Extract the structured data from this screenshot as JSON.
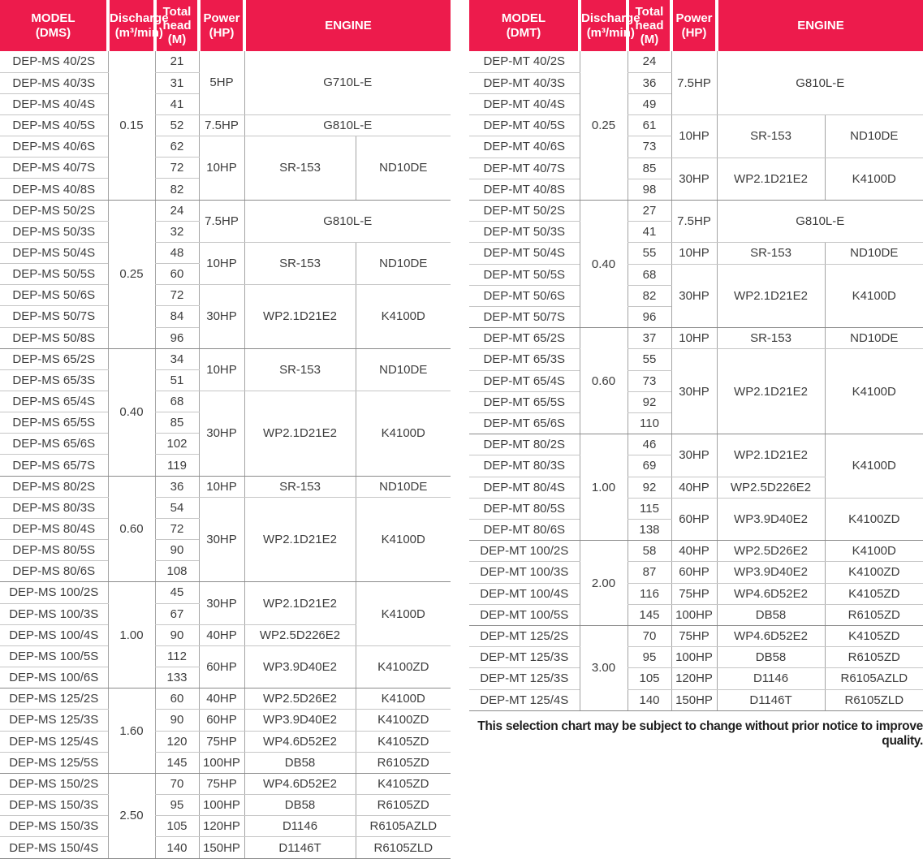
{
  "colors": {
    "header_bg": "#ED1B4C",
    "header_text": "#ffffff",
    "body_text": "#3d3d3d"
  },
  "note": "This selection chart may be subject to change without prior notice to improve quality.",
  "tables": [
    {
      "id": "dms",
      "header": {
        "model": "MODEL\n(DMS)",
        "discharge": "Discharge\n(m³/min)",
        "head": "Total\nhead\n(M)",
        "power": "Power\n(HP)",
        "engine": "ENGINE"
      },
      "columns": {
        "model": [
          "DEP-MS 40/2S",
          "DEP-MS 40/3S",
          "DEP-MS 40/4S",
          "DEP-MS 40/5S",
          "DEP-MS 40/6S",
          "DEP-MS 40/7S",
          "DEP-MS 40/8S",
          "DEP-MS 50/2S",
          "DEP-MS 50/3S",
          "DEP-MS 50/4S",
          "DEP-MS 50/5S",
          "DEP-MS 50/6S",
          "DEP-MS 50/7S",
          "DEP-MS 50/8S",
          "DEP-MS 65/2S",
          "DEP-MS 65/3S",
          "DEP-MS 65/4S",
          "DEP-MS 65/5S",
          "DEP-MS 65/6S",
          "DEP-MS 65/7S",
          "DEP-MS 80/2S",
          "DEP-MS 80/3S",
          "DEP-MS 80/4S",
          "DEP-MS 80/5S",
          "DEP-MS 80/6S",
          "DEP-MS 100/2S",
          "DEP-MS 100/3S",
          "DEP-MS 100/4S",
          "DEP-MS 100/5S",
          "DEP-MS 100/6S",
          "DEP-MS 125/2S",
          "DEP-MS 125/3S",
          "DEP-MS 125/4S",
          "DEP-MS 125/5S",
          "DEP-MS 150/2S",
          "DEP-MS 150/3S",
          "DEP-MS 150/3S",
          "DEP-MS 150/4S"
        ],
        "head": [
          "21",
          "31",
          "41",
          "52",
          "62",
          "72",
          "82",
          "24",
          "32",
          "48",
          "60",
          "72",
          "84",
          "96",
          "34",
          "51",
          "68",
          "85",
          "102",
          "119",
          "36",
          "54",
          "72",
          "90",
          "108",
          "45",
          "67",
          "90",
          "112",
          "133",
          "60",
          "90",
          "120",
          "145",
          "70",
          "95",
          "105",
          "140"
        ],
        "discharge": [
          {
            "t": "0.15",
            "r": 7
          },
          {
            "t": "0.25",
            "r": 7
          },
          {
            "t": "0.40",
            "r": 6
          },
          {
            "t": "0.60",
            "r": 5
          },
          {
            "t": "1.00",
            "r": 5
          },
          {
            "t": "1.60",
            "r": 4
          },
          {
            "t": "2.50",
            "r": 4
          }
        ],
        "power": [
          {
            "t": "5HP",
            "r": 3
          },
          {
            "t": "7.5HP",
            "r": 1
          },
          {
            "t": "10HP",
            "r": 3
          },
          {
            "t": "7.5HP",
            "r": 2
          },
          {
            "t": "10HP",
            "r": 2
          },
          {
            "t": "30HP",
            "r": 3
          },
          {
            "t": "10HP",
            "r": 2
          },
          {
            "t": "30HP",
            "r": 4
          },
          {
            "t": "10HP",
            "r": 1
          },
          {
            "t": "30HP",
            "r": 4
          },
          {
            "t": "30HP",
            "r": 2
          },
          {
            "t": "40HP",
            "r": 1
          },
          {
            "t": "60HP",
            "r": 2
          },
          {
            "t": "40HP",
            "r": 1
          },
          {
            "t": "60HP",
            "r": 1
          },
          {
            "t": "75HP",
            "r": 1
          },
          {
            "t": "100HP",
            "r": 1
          },
          {
            "t": "75HP",
            "r": 1
          },
          {
            "t": "100HP",
            "r": 1
          },
          {
            "t": "120HP",
            "r": 1
          },
          {
            "t": "150HP",
            "r": 1
          }
        ],
        "engine1": [
          {
            "t": "G710L-E",
            "r": 3,
            "w": 2
          },
          {
            "t": "G810L-E",
            "r": 1,
            "w": 2
          },
          {
            "t": "SR-153",
            "r": 3
          },
          {
            "t": "G810L-E",
            "r": 2,
            "w": 2
          },
          {
            "t": "SR-153",
            "r": 2
          },
          {
            "t": "WP2.1D21E2",
            "r": 3
          },
          {
            "t": "SR-153",
            "r": 2
          },
          {
            "t": "WP2.1D21E2",
            "r": 4
          },
          {
            "t": "SR-153",
            "r": 1
          },
          {
            "t": "WP2.1D21E2",
            "r": 4
          },
          {
            "t": "WP2.1D21E2",
            "r": 2
          },
          {
            "t": "WP2.5D226E2",
            "r": 1
          },
          {
            "t": "WP3.9D40E2",
            "r": 2
          },
          {
            "t": "WP2.5D26E2",
            "r": 1
          },
          {
            "t": "WP3.9D40E2",
            "r": 1
          },
          {
            "t": "WP4.6D52E2",
            "r": 1
          },
          {
            "t": "DB58",
            "r": 1
          },
          {
            "t": "WP4.6D52E2",
            "r": 1
          },
          {
            "t": "DB58",
            "r": 1
          },
          {
            "t": "D1146",
            "r": 1
          },
          {
            "t": "D1146T",
            "r": 1
          }
        ],
        "engine2": [
          {
            "t": "ND10DE",
            "r": 3
          },
          {
            "t": "ND10DE",
            "r": 2
          },
          {
            "t": "K4100D",
            "r": 3
          },
          {
            "t": "ND10DE",
            "r": 2
          },
          {
            "t": "K4100D",
            "r": 4
          },
          {
            "t": "ND10DE",
            "r": 1
          },
          {
            "t": "K4100D",
            "r": 4
          },
          {
            "t": "K4100D",
            "r": 3
          },
          {
            "t": "K4100ZD",
            "r": 2
          },
          {
            "t": "K4100D",
            "r": 1
          },
          {
            "t": "K4100ZD",
            "r": 1
          },
          {
            "t": "K4105ZD",
            "r": 1
          },
          {
            "t": "R6105ZD",
            "r": 1
          },
          {
            "t": "K4105ZD",
            "r": 1
          },
          {
            "t": "R6105ZD",
            "r": 1
          },
          {
            "t": "R6105AZLD",
            "r": 1
          },
          {
            "t": "R6105ZLD",
            "r": 1
          }
        ]
      }
    },
    {
      "id": "dmt",
      "header": {
        "model": "MODEL\n(DMT)",
        "discharge": "Discharge\n(m³/min)",
        "head": "Total\nhead\n(M)",
        "power": "Power\n(HP)",
        "engine": "ENGINE"
      },
      "columns": {
        "model": [
          "DEP-MT 40/2S",
          "DEP-MT 40/3S",
          "DEP-MT 40/4S",
          "DEP-MT 40/5S",
          "DEP-MT 40/6S",
          "DEP-MT 40/7S",
          "DEP-MT 40/8S",
          "DEP-MT 50/2S",
          "DEP-MT 50/3S",
          "DEP-MT 50/4S",
          "DEP-MT 50/5S",
          "DEP-MT 50/6S",
          "DEP-MT 50/7S",
          "DEP-MT 65/2S",
          "DEP-MT 65/3S",
          "DEP-MT 65/4S",
          "DEP-MT 65/5S",
          "DEP-MT 65/6S",
          "DEP-MT 80/2S",
          "DEP-MT 80/3S",
          "DEP-MT 80/4S",
          "DEP-MT 80/5S",
          "DEP-MT 80/6S",
          "DEP-MT 100/2S",
          "DEP-MT 100/3S",
          "DEP-MT 100/4S",
          "DEP-MT 100/5S",
          "DEP-MT 125/2S",
          "DEP-MT 125/3S",
          "DEP-MT 125/3S",
          "DEP-MT 125/4S"
        ],
        "head": [
          "24",
          "36",
          "49",
          "61",
          "73",
          "85",
          "98",
          "27",
          "41",
          "55",
          "68",
          "82",
          "96",
          "37",
          "55",
          "73",
          "92",
          "110",
          "46",
          "69",
          "92",
          "115",
          "138",
          "58",
          "87",
          "116",
          "145",
          "70",
          "95",
          "105",
          "140"
        ],
        "discharge": [
          {
            "t": "0.25",
            "r": 7
          },
          {
            "t": "0.40",
            "r": 6
          },
          {
            "t": "0.60",
            "r": 5
          },
          {
            "t": "1.00",
            "r": 5
          },
          {
            "t": "2.00",
            "r": 4
          },
          {
            "t": "3.00",
            "r": 4
          }
        ],
        "power": [
          {
            "t": "7.5HP",
            "r": 3
          },
          {
            "t": "10HP",
            "r": 2
          },
          {
            "t": "30HP",
            "r": 2
          },
          {
            "t": "7.5HP",
            "r": 2
          },
          {
            "t": "10HP",
            "r": 1
          },
          {
            "t": "30HP",
            "r": 3
          },
          {
            "t": "10HP",
            "r": 1
          },
          {
            "t": "30HP",
            "r": 4
          },
          {
            "t": "30HP",
            "r": 2
          },
          {
            "t": "40HP",
            "r": 1
          },
          {
            "t": "60HP",
            "r": 2
          },
          {
            "t": "40HP",
            "r": 1
          },
          {
            "t": "60HP",
            "r": 1
          },
          {
            "t": "75HP",
            "r": 1
          },
          {
            "t": "100HP",
            "r": 1
          },
          {
            "t": "75HP",
            "r": 1
          },
          {
            "t": "100HP",
            "r": 1
          },
          {
            "t": "120HP",
            "r": 1
          },
          {
            "t": "150HP",
            "r": 1
          }
        ],
        "engine1": [
          {
            "t": "G810L-E",
            "r": 3,
            "w": 2
          },
          {
            "t": "SR-153",
            "r": 2
          },
          {
            "t": "WP2.1D21E2",
            "r": 2
          },
          {
            "t": "G810L-E",
            "r": 2,
            "w": 2
          },
          {
            "t": "SR-153",
            "r": 1
          },
          {
            "t": "WP2.1D21E2",
            "r": 3
          },
          {
            "t": "SR-153",
            "r": 1
          },
          {
            "t": "WP2.1D21E2",
            "r": 4
          },
          {
            "t": "WP2.1D21E2",
            "r": 2
          },
          {
            "t": "WP2.5D226E2",
            "r": 1
          },
          {
            "t": "WP3.9D40E2",
            "r": 2
          },
          {
            "t": "WP2.5D26E2",
            "r": 1
          },
          {
            "t": "WP3.9D40E2",
            "r": 1
          },
          {
            "t": "WP4.6D52E2",
            "r": 1
          },
          {
            "t": "DB58",
            "r": 1
          },
          {
            "t": "WP4.6D52E2",
            "r": 1
          },
          {
            "t": "DB58",
            "r": 1
          },
          {
            "t": "D1146",
            "r": 1
          },
          {
            "t": "D1146T",
            "r": 1
          }
        ],
        "engine2": [
          {
            "t": "ND10DE",
            "r": 2
          },
          {
            "t": "K4100D",
            "r": 2
          },
          {
            "t": "ND10DE",
            "r": 1
          },
          {
            "t": "K4100D",
            "r": 3
          },
          {
            "t": "ND10DE",
            "r": 1
          },
          {
            "t": "K4100D",
            "r": 4
          },
          {
            "t": "K4100D",
            "r": 3
          },
          {
            "t": "K4100ZD",
            "r": 2
          },
          {
            "t": "K4100D",
            "r": 1
          },
          {
            "t": "K4100ZD",
            "r": 1
          },
          {
            "t": "K4105ZD",
            "r": 1
          },
          {
            "t": "R6105ZD",
            "r": 1
          },
          {
            "t": "K4105ZD",
            "r": 1
          },
          {
            "t": "R6105ZD",
            "r": 1
          },
          {
            "t": "R6105AZLD",
            "r": 1
          },
          {
            "t": "R6105ZLD",
            "r": 1
          }
        ]
      }
    }
  ]
}
